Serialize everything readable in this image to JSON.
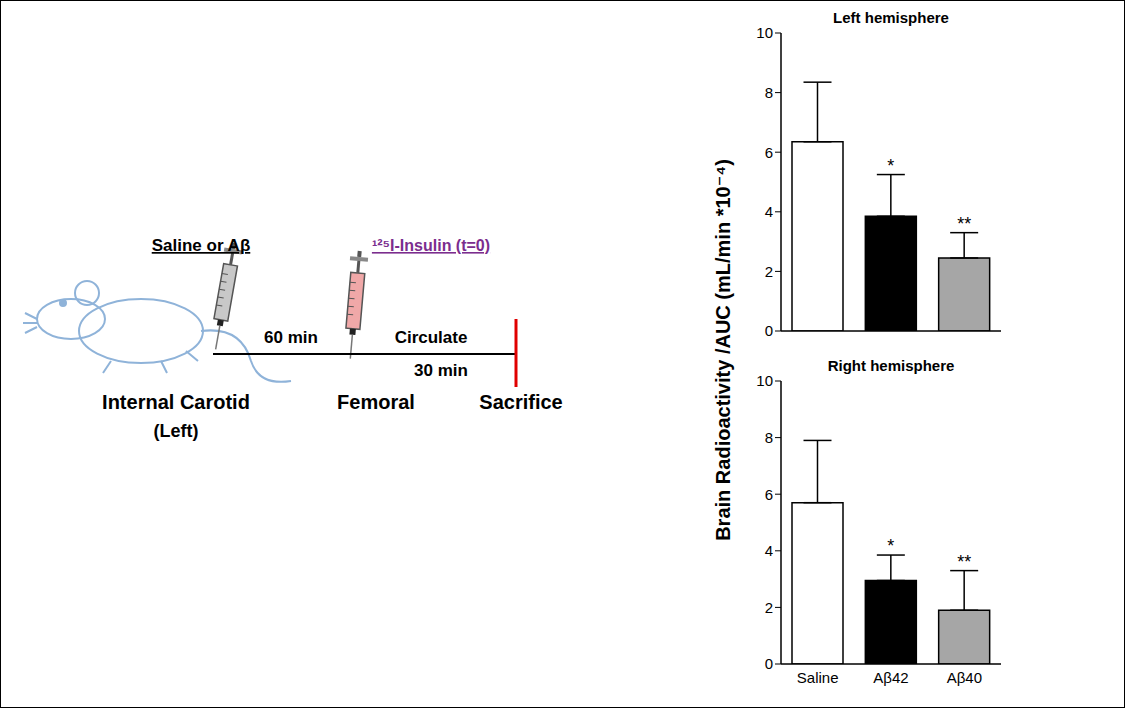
{
  "diagram": {
    "injection_1": "Saline or Aβ",
    "interval_1": "60 min",
    "site_1": "Internal Carotid",
    "side_1": "(Left)",
    "injection_2": "¹²⁵I-Insulin (t=0)",
    "site_2": "Femoral",
    "step_2": "Circulate",
    "interval_2": "30 min",
    "end": "Sacrifice"
  },
  "y_label": "Brain Radioactivity /AUC (mL/min *10⁻⁴)",
  "chart_data": [
    {
      "type": "bar",
      "title": "Left hemisphere",
      "categories": [
        "Saline",
        "Aβ42",
        "Aβ40"
      ],
      "values": [
        6.35,
        3.85,
        2.45
      ],
      "errors": [
        2.0,
        1.4,
        0.85
      ],
      "significance": [
        null,
        "*",
        "**"
      ],
      "colors": [
        "#ffffff",
        "#000000",
        "#a6a6a6"
      ],
      "ylim": [
        0,
        10
      ],
      "yticks": [
        0,
        2,
        4,
        6,
        8,
        10
      ],
      "tick_labels": "y"
    },
    {
      "type": "bar",
      "title": "Right hemisphere",
      "categories": [
        "Saline",
        "Aβ42",
        "Aβ40"
      ],
      "values": [
        5.7,
        2.95,
        1.9
      ],
      "errors": [
        2.2,
        0.9,
        1.4
      ],
      "significance": [
        null,
        "*",
        "**"
      ],
      "colors": [
        "#ffffff",
        "#000000",
        "#a6a6a6"
      ],
      "ylim": [
        0,
        10
      ],
      "yticks": [
        0,
        2,
        4,
        6,
        8,
        10
      ]
    }
  ]
}
